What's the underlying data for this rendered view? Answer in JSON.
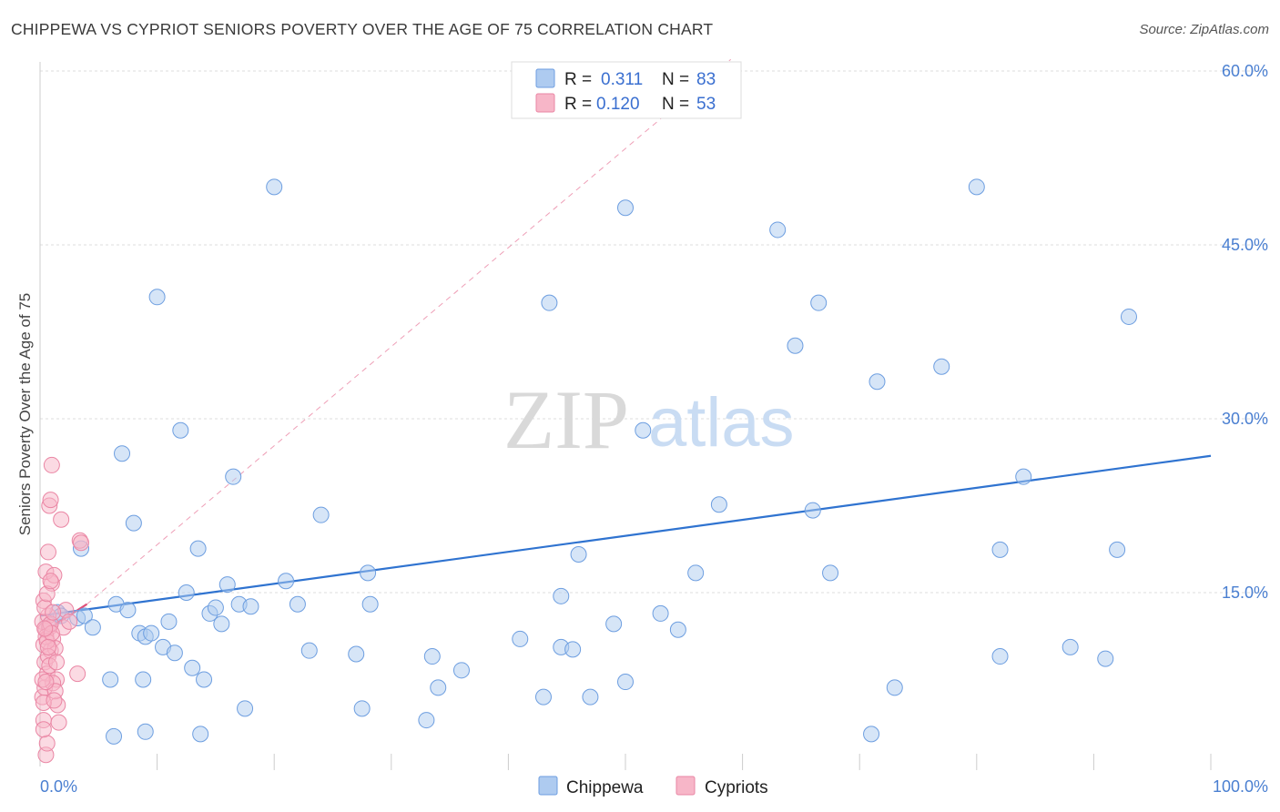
{
  "title": "CHIPPEWA VS CYPRIOT SENIORS POVERTY OVER THE AGE OF 75 CORRELATION CHART",
  "source": "Source: ZipAtlas.com",
  "watermark": {
    "zip": "ZIP",
    "atlas": "atlas"
  },
  "colors": {
    "chippewa_fill": "#aecbf0",
    "chippewa_stroke": "#6d9ee0",
    "chippewa_line": "#2f73d0",
    "cypriots_fill": "#f7b6c8",
    "cypriots_stroke": "#ea86a4",
    "cypriots_line": "#e0507a",
    "grid": "#dcdcdc",
    "tick_text": "#4a7fd1"
  },
  "legend": {
    "rows": [
      {
        "r_label": "R =",
        "r_value": "0.311",
        "n_label": "N =",
        "n_value": "83"
      },
      {
        "r_label": "R =",
        "r_value": "0.120",
        "n_label": "N =",
        "n_value": "53"
      }
    ]
  },
  "chart_data": {
    "type": "scatter",
    "xlabel": "",
    "ylabel": "Seniors Poverty Over the Age of 75",
    "xlim": [
      0,
      100
    ],
    "ylim": [
      0,
      60
    ],
    "x_tick_labels": [
      "0.0%",
      "100.0%"
    ],
    "y_tick_labels": [
      "15.0%",
      "30.0%",
      "45.0%",
      "60.0%"
    ],
    "y_ticks": [
      15,
      30,
      45,
      60
    ],
    "legend_position": "top-center",
    "series": [
      {
        "name": "Chippewa",
        "trend": {
          "x0": 0,
          "y0": 13.0,
          "x1": 100,
          "y1": 26.8
        },
        "points": [
          [
            0.8,
            12.2
          ],
          [
            1.5,
            13.3
          ],
          [
            1.8,
            13.0
          ],
          [
            3.2,
            12.8
          ],
          [
            3.8,
            13.0
          ],
          [
            4.5,
            12.0
          ],
          [
            3.5,
            18.8
          ],
          [
            6.0,
            7.5
          ],
          [
            6.5,
            14.0
          ],
          [
            7.0,
            27.0
          ],
          [
            7.5,
            13.5
          ],
          [
            8.0,
            21.0
          ],
          [
            8.5,
            11.5
          ],
          [
            8.8,
            7.5
          ],
          [
            9.0,
            11.2
          ],
          [
            9.5,
            11.5
          ],
          [
            10.0,
            40.5
          ],
          [
            10.5,
            10.3
          ],
          [
            11.0,
            12.5
          ],
          [
            11.5,
            9.8
          ],
          [
            12.0,
            29.0
          ],
          [
            12.5,
            15.0
          ],
          [
            13.0,
            8.5
          ],
          [
            13.5,
            18.8
          ],
          [
            14.0,
            7.5
          ],
          [
            14.5,
            13.2
          ],
          [
            15.0,
            13.7
          ],
          [
            15.5,
            12.3
          ],
          [
            16.0,
            15.7
          ],
          [
            16.5,
            25.0
          ],
          [
            17.0,
            14.0
          ],
          [
            17.5,
            5.0
          ],
          [
            18.0,
            13.8
          ],
          [
            20.0,
            50.0
          ],
          [
            21.0,
            16.0
          ],
          [
            22.0,
            14.0
          ],
          [
            23.0,
            10.0
          ],
          [
            24.0,
            21.7
          ],
          [
            27.0,
            9.7
          ],
          [
            28.0,
            16.7
          ],
          [
            28.2,
            14.0
          ],
          [
            33.0,
            4.0
          ],
          [
            33.5,
            9.5
          ],
          [
            34.0,
            6.8
          ],
          [
            36.0,
            8.3
          ],
          [
            41.0,
            11.0
          ],
          [
            43.0,
            6.0
          ],
          [
            43.5,
            40.0
          ],
          [
            44.5,
            14.7
          ],
          [
            44.5,
            10.3
          ],
          [
            45.5,
            10.1
          ],
          [
            46.0,
            18.3
          ],
          [
            47.0,
            6.0
          ],
          [
            49.0,
            12.3
          ],
          [
            50.0,
            48.2
          ],
          [
            50.0,
            7.3
          ],
          [
            51.5,
            29.0
          ],
          [
            53.0,
            13.2
          ],
          [
            54.5,
            11.8
          ],
          [
            56.0,
            16.7
          ],
          [
            58.0,
            22.6
          ],
          [
            59.0,
            60.0
          ],
          [
            63.0,
            46.3
          ],
          [
            64.5,
            36.3
          ],
          [
            66.0,
            22.1
          ],
          [
            66.5,
            40.0
          ],
          [
            67.5,
            16.7
          ],
          [
            71.0,
            2.8
          ],
          [
            71.5,
            33.2
          ],
          [
            73.0,
            6.8
          ],
          [
            77.0,
            34.5
          ],
          [
            80.0,
            50.0
          ],
          [
            82.0,
            18.7
          ],
          [
            82.0,
            9.5
          ],
          [
            84.0,
            25.0
          ],
          [
            88.0,
            10.3
          ],
          [
            91.0,
            9.3
          ],
          [
            92.0,
            18.7
          ],
          [
            93.0,
            38.8
          ],
          [
            27.5,
            5.0
          ],
          [
            13.7,
            2.8
          ],
          [
            6.3,
            2.6
          ],
          [
            9.0,
            3.0
          ]
        ]
      },
      {
        "name": "Cypriots",
        "trend": {
          "x0": 0,
          "y0": 11.4,
          "x1": 4.0,
          "y1": 14.0
        },
        "extrapolation": {
          "x0": 4.0,
          "y0": 14.0,
          "x1": 59.0,
          "y1": 61.0
        },
        "points": [
          [
            0.2,
            12.5
          ],
          [
            0.3,
            10.5
          ],
          [
            0.4,
            9.0
          ],
          [
            0.5,
            11.8
          ],
          [
            0.6,
            8.0
          ],
          [
            0.7,
            13.0
          ],
          [
            0.8,
            12.0
          ],
          [
            0.9,
            10.0
          ],
          [
            1.0,
            15.8
          ],
          [
            1.1,
            11.0
          ],
          [
            0.2,
            6.0
          ],
          [
            0.3,
            4.0
          ],
          [
            0.4,
            6.8
          ],
          [
            0.5,
            1.0
          ],
          [
            0.6,
            2.0
          ],
          [
            0.7,
            18.5
          ],
          [
            0.8,
            22.5
          ],
          [
            0.9,
            23.0
          ],
          [
            1.0,
            26.0
          ],
          [
            0.5,
            16.8
          ],
          [
            1.2,
            16.5
          ],
          [
            1.3,
            10.2
          ],
          [
            1.4,
            7.5
          ],
          [
            1.5,
            5.3
          ],
          [
            1.6,
            3.8
          ],
          [
            1.8,
            21.3
          ],
          [
            2.0,
            12.0
          ],
          [
            2.2,
            13.5
          ],
          [
            2.5,
            12.5
          ],
          [
            0.3,
            14.3
          ],
          [
            0.4,
            13.7
          ],
          [
            0.5,
            11.2
          ],
          [
            0.6,
            10.8
          ],
          [
            0.7,
            9.5
          ],
          [
            0.8,
            8.7
          ],
          [
            0.9,
            12.3
          ],
          [
            1.0,
            11.5
          ],
          [
            1.1,
            7.2
          ],
          [
            0.2,
            7.5
          ],
          [
            0.3,
            5.5
          ],
          [
            3.2,
            8.0
          ],
          [
            3.4,
            19.5
          ],
          [
            3.5,
            19.3
          ],
          [
            1.3,
            6.5
          ],
          [
            1.2,
            5.7
          ],
          [
            0.6,
            14.9
          ],
          [
            0.9,
            16.0
          ],
          [
            1.1,
            13.3
          ],
          [
            0.4,
            11.9
          ],
          [
            0.7,
            10.3
          ],
          [
            1.4,
            9.0
          ],
          [
            0.5,
            7.3
          ],
          [
            0.3,
            3.2
          ]
        ]
      }
    ]
  }
}
